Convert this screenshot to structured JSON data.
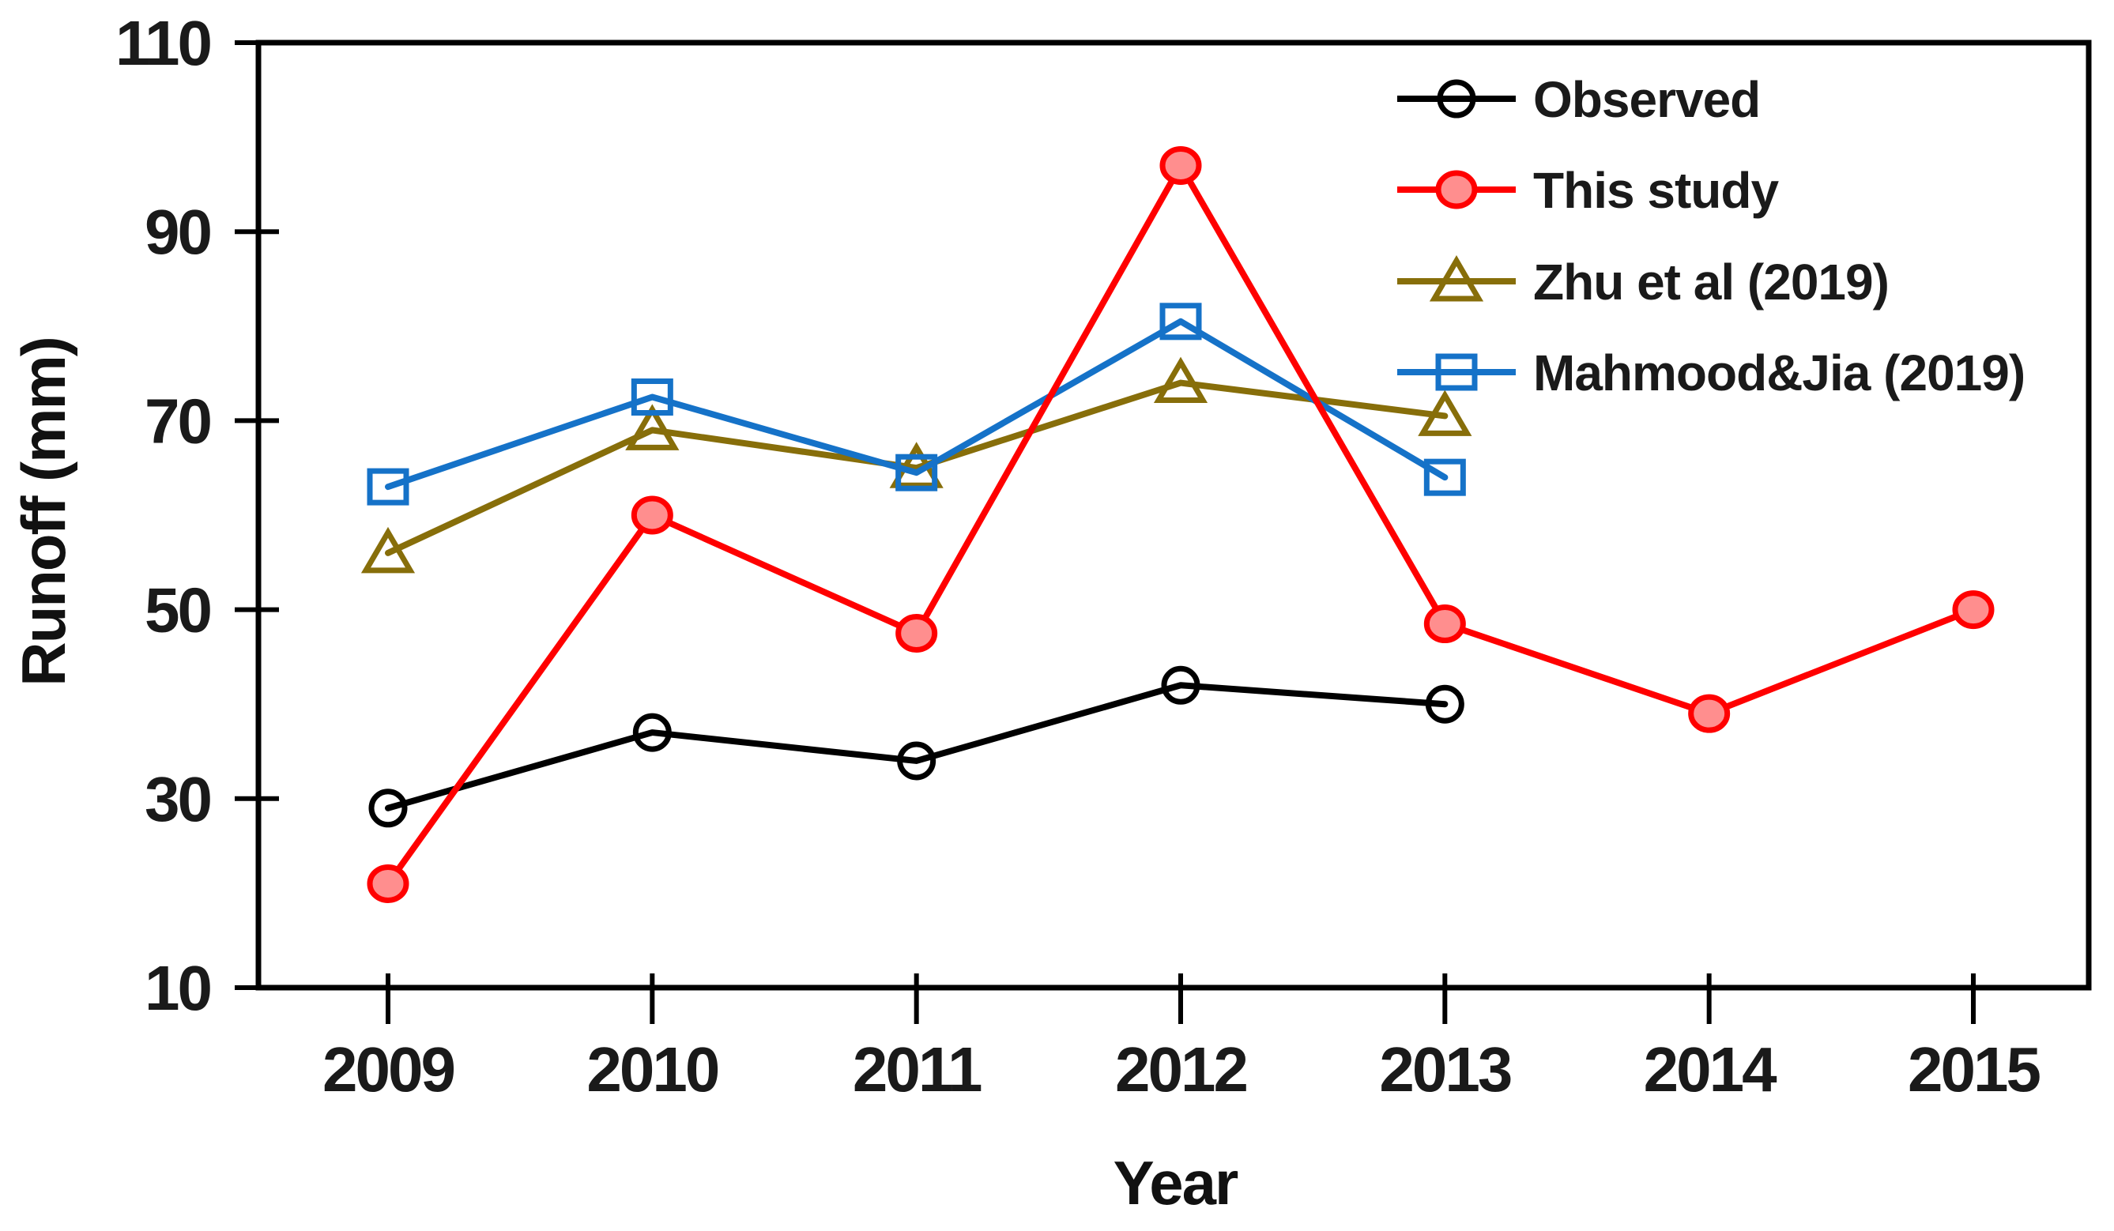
{
  "chart_data": {
    "type": "line",
    "title": "",
    "xlabel": "Year",
    "ylabel": "Runoff (mm)",
    "categories": [
      "2009",
      "2010",
      "2011",
      "2012",
      "2013",
      "2014",
      "2015"
    ],
    "ylim": [
      10,
      110
    ],
    "ytick_interval": 20,
    "yticks": [
      110,
      90,
      70,
      50,
      30,
      10
    ],
    "grid": false,
    "legend_position": "top-right inside plot area",
    "series": [
      {
        "name": "Observed",
        "color": "#000000",
        "marker": "open-circle",
        "marker_fill": "none",
        "values": [
          29,
          37,
          34,
          42,
          40,
          null,
          null
        ]
      },
      {
        "name": "This study",
        "color": "#ff0000",
        "marker": "filled-circle",
        "marker_fill": "#ff8e8e",
        "values": [
          21,
          60,
          47.5,
          97,
          48.5,
          39,
          50
        ]
      },
      {
        "name": "Zhu et al (2019)",
        "color": "#876e0a",
        "marker": "open-triangle",
        "marker_fill": "none",
        "values": [
          56,
          69,
          65,
          74,
          70.5,
          null,
          null
        ]
      },
      {
        "name": "Mahmood&Jia (2019)",
        "color": "#1572c8",
        "marker": "open-square",
        "marker_fill": "none",
        "values": [
          63,
          72.5,
          64.5,
          80.5,
          64,
          null,
          null
        ]
      }
    ],
    "axis_color": "#000000",
    "text_color": "#1a1a1a"
  }
}
